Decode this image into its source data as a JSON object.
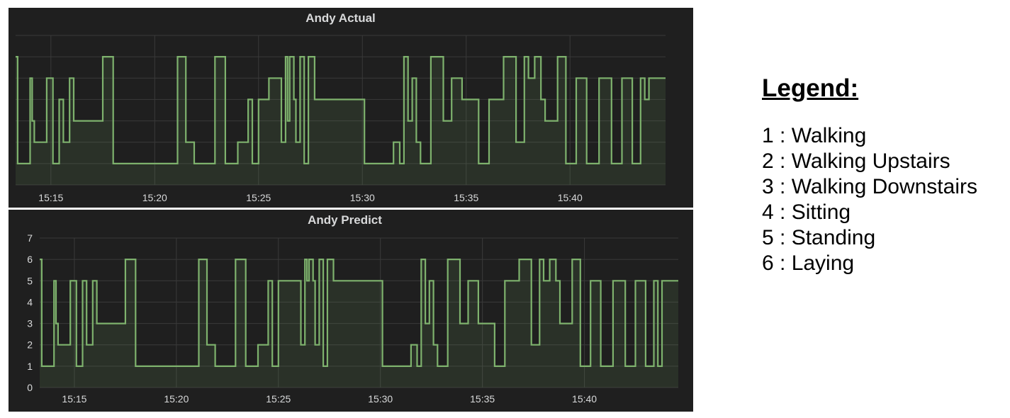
{
  "chart_data": [
    {
      "type": "line",
      "title": "Andy Actual",
      "xlabel": "",
      "ylabel": "",
      "x_ticks": [
        "15:15",
        "15:20",
        "15:25",
        "15:30",
        "15:35",
        "15:40"
      ],
      "y_ticks": [],
      "xlim": [
        13.3,
        44.6
      ],
      "ylim": [
        0,
        7
      ],
      "grid": true,
      "step": true,
      "fill": true,
      "line_color": "#7eb26d",
      "series": [
        {
          "x": [
            13.3,
            13.4,
            14.0,
            14.1,
            14.2,
            14.8,
            15.1,
            15.4,
            15.6,
            15.9,
            16.1,
            16.2,
            16.7,
            17.5,
            18.0,
            21.1,
            21.5,
            21.9,
            22.9,
            23.4,
            24.0,
            24.5,
            24.7,
            25.0,
            25.5,
            25.8,
            26.1,
            26.3,
            26.4,
            26.5,
            26.7,
            26.8,
            27.0,
            27.2,
            27.4,
            27.7,
            28.1,
            30.1,
            30.6,
            31.5,
            31.8,
            32.0,
            32.2,
            32.4,
            32.6,
            32.8,
            32.9,
            33.3,
            33.9,
            34.3,
            34.8,
            35.6,
            36.1,
            36.3,
            36.8,
            37.4,
            37.8,
            38.0,
            38.3,
            38.6,
            38.8,
            39.2,
            39.4,
            39.8,
            40.3,
            40.8,
            41.4,
            42.0,
            42.5,
            43.0,
            43.4,
            43.6,
            43.8,
            44.0,
            44.2,
            44.5
          ],
          "values": [
            6,
            1,
            5,
            3,
            2,
            5,
            1,
            4,
            2,
            5,
            3,
            3,
            3,
            6,
            1,
            6,
            2,
            1,
            6,
            1,
            2,
            4,
            1,
            4,
            5,
            5,
            2,
            6,
            3,
            6,
            4,
            2,
            6,
            1,
            6,
            4,
            4,
            1,
            1,
            2,
            1,
            6,
            3,
            5,
            2,
            1,
            1,
            6,
            3,
            5,
            4,
            1,
            4,
            4,
            6,
            2,
            6,
            5,
            6,
            4,
            3,
            3,
            6,
            1,
            5,
            1,
            5,
            1,
            5,
            1,
            5,
            4,
            5,
            5,
            5,
            5
          ]
        }
      ]
    },
    {
      "type": "line",
      "title": "Andy Predict",
      "xlabel": "",
      "ylabel": "",
      "x_ticks": [
        "15:15",
        "15:20",
        "15:25",
        "15:30",
        "15:35",
        "15:40"
      ],
      "y_ticks": [
        "7",
        "6",
        "5",
        "4",
        "3",
        "2",
        "1",
        "0"
      ],
      "xlim": [
        13.3,
        44.6
      ],
      "ylim": [
        0,
        7
      ],
      "grid": true,
      "step": true,
      "fill": true,
      "line_color": "#7eb26d",
      "series": [
        {
          "x": [
            13.3,
            13.4,
            14.0,
            14.1,
            14.2,
            14.8,
            15.1,
            15.4,
            15.6,
            15.9,
            16.1,
            16.2,
            16.7,
            17.5,
            18.0,
            21.1,
            21.5,
            21.9,
            22.9,
            23.4,
            24.0,
            24.5,
            24.7,
            25.0,
            25.5,
            25.8,
            26.1,
            26.3,
            26.4,
            26.5,
            26.7,
            26.8,
            27.0,
            27.2,
            27.4,
            27.7,
            28.1,
            30.1,
            30.6,
            31.5,
            31.8,
            32.0,
            32.2,
            32.4,
            32.6,
            32.8,
            32.9,
            33.3,
            33.9,
            34.3,
            34.8,
            35.6,
            36.1,
            36.3,
            36.8,
            37.4,
            37.8,
            38.0,
            38.3,
            38.6,
            38.8,
            39.2,
            39.4,
            39.8,
            40.3,
            40.8,
            41.4,
            42.0,
            42.5,
            43.0,
            43.4,
            43.6,
            43.8,
            44.0,
            44.2,
            44.5
          ],
          "values": [
            6,
            1,
            5,
            3,
            2,
            5,
            1,
            5,
            2,
            5,
            3,
            3,
            3,
            6,
            1,
            6,
            2,
            1,
            6,
            1,
            2,
            5,
            1,
            5,
            5,
            5,
            2,
            6,
            5,
            6,
            5,
            2,
            6,
            1,
            6,
            5,
            5,
            1,
            1,
            2,
            1,
            6,
            3,
            5,
            2,
            1,
            1,
            6,
            3,
            5,
            3,
            1,
            5,
            5,
            6,
            2,
            6,
            5,
            6,
            5,
            3,
            3,
            6,
            1,
            5,
            1,
            5,
            1,
            5,
            1,
            5,
            1,
            5,
            5,
            5,
            5
          ]
        }
      ]
    }
  ],
  "legend": {
    "title": "Legend:",
    "items": [
      "1 : Walking",
      "2 : Walking Upstairs",
      "3 : Walking Downstairs",
      "4 : Sitting",
      "5 : Standing",
      "6 : Laying"
    ]
  }
}
